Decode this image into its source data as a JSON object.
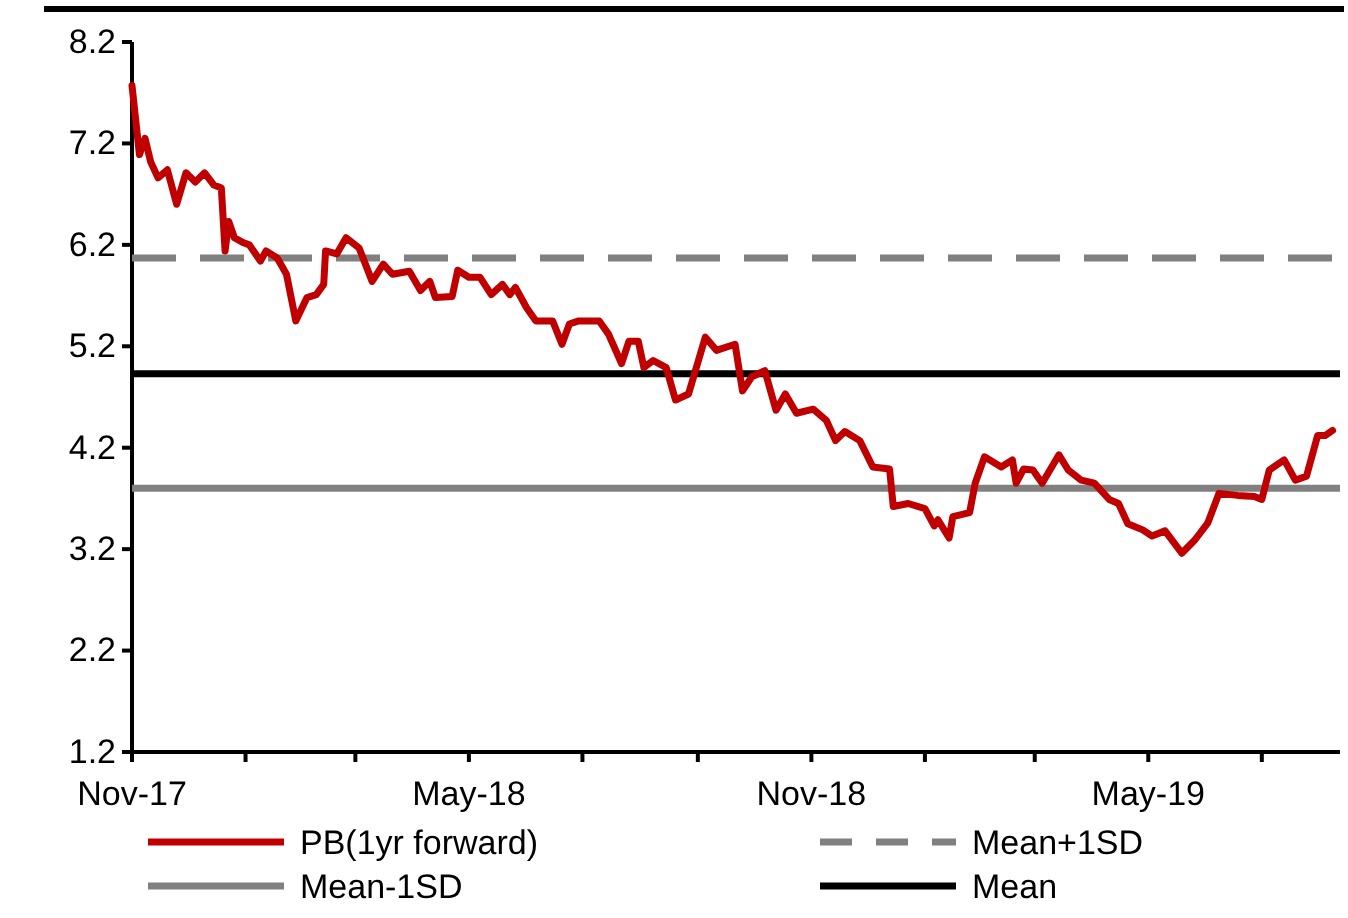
{
  "chart_data": {
    "type": "line",
    "x": [
      "2017-11-01",
      "2017-11-05",
      "2017-11-08",
      "2017-11-11",
      "2017-11-15",
      "2017-11-20",
      "2017-11-25",
      "2017-11-30",
      "2017-12-05",
      "2017-12-10",
      "2017-12-15",
      "2017-12-19",
      "2017-12-21",
      "2017-12-23",
      "2017-12-26",
      "2017-12-31",
      "2018-01-03",
      "2018-01-09",
      "2018-01-12",
      "2018-01-18",
      "2018-01-23",
      "2018-01-28",
      "2018-02-03",
      "2018-02-08",
      "2018-02-12",
      "2018-02-13",
      "2018-02-19",
      "2018-02-24",
      "2018-03-03",
      "2018-03-10",
      "2018-03-16",
      "2018-03-21",
      "2018-03-30",
      "2018-04-05",
      "2018-04-10",
      "2018-04-13",
      "2018-04-22",
      "2018-04-25",
      "2018-05-01",
      "2018-05-07",
      "2018-05-13",
      "2018-05-19",
      "2018-05-23",
      "2018-05-26",
      "2018-06-01",
      "2018-06-06",
      "2018-06-15",
      "2018-06-20",
      "2018-06-24",
      "2018-06-29",
      "2018-07-10",
      "2018-07-15",
      "2018-07-22",
      "2018-07-26",
      "2018-07-31",
      "2018-08-03",
      "2018-08-08",
      "2018-08-15",
      "2018-08-20",
      "2018-08-27",
      "2018-09-05",
      "2018-09-11",
      "2018-09-21",
      "2018-09-25",
      "2018-09-30",
      "2018-10-07",
      "2018-10-13",
      "2018-10-18",
      "2018-10-24",
      "2018-11-02",
      "2018-11-09",
      "2018-11-14",
      "2018-11-19",
      "2018-11-27",
      "2018-12-04",
      "2018-12-13",
      "2018-12-15",
      "2018-12-23",
      "2019-01-01",
      "2019-01-06",
      "2019-01-08",
      "2019-01-14",
      "2019-01-16",
      "2019-01-25",
      "2019-01-28",
      "2019-02-02",
      "2019-02-11",
      "2019-02-17",
      "2019-02-19",
      "2019-02-23",
      "2019-02-28",
      "2019-03-05",
      "2019-03-14",
      "2019-03-19",
      "2019-03-26",
      "2019-04-02",
      "2019-04-10",
      "2019-04-15",
      "2019-04-20",
      "2019-04-28",
      "2019-05-03",
      "2019-05-10",
      "2019-05-19",
      "2019-05-26",
      "2019-06-02",
      "2019-06-08",
      "2019-06-18",
      "2019-06-27",
      "2019-07-01",
      "2019-07-05",
      "2019-07-13",
      "2019-07-19",
      "2019-07-25",
      "2019-07-31",
      "2019-08-04",
      "2019-08-08"
    ],
    "series": [
      {
        "name": "PB(1yr forward)",
        "color": "#c00000",
        "values": [
          7.77,
          7.09,
          7.25,
          7.02,
          6.86,
          6.94,
          6.6,
          6.91,
          6.82,
          6.91,
          6.79,
          6.76,
          6.14,
          6.43,
          6.27,
          6.22,
          6.2,
          6.04,
          6.14,
          6.07,
          5.91,
          5.45,
          5.68,
          5.71,
          5.81,
          6.14,
          6.11,
          6.27,
          6.17,
          5.84,
          6.01,
          5.91,
          5.94,
          5.75,
          5.84,
          5.68,
          5.69,
          5.95,
          5.88,
          5.88,
          5.71,
          5.81,
          5.71,
          5.78,
          5.58,
          5.45,
          5.45,
          5.22,
          5.42,
          5.45,
          5.45,
          5.32,
          5.03,
          5.25,
          5.25,
          4.99,
          5.06,
          4.99,
          4.67,
          4.73,
          5.29,
          5.16,
          5.22,
          4.76,
          4.9,
          4.96,
          4.57,
          4.73,
          4.54,
          4.58,
          4.47,
          4.27,
          4.36,
          4.27,
          4.01,
          3.99,
          3.62,
          3.65,
          3.6,
          3.43,
          3.49,
          3.31,
          3.52,
          3.56,
          3.85,
          4.11,
          4.01,
          4.08,
          3.85,
          3.99,
          3.98,
          3.85,
          4.13,
          3.98,
          3.88,
          3.85,
          3.69,
          3.65,
          3.45,
          3.39,
          3.33,
          3.38,
          3.16,
          3.29,
          3.46,
          3.75,
          3.73,
          3.72,
          3.69,
          3.98,
          4.08,
          3.88,
          3.92,
          4.32,
          4.32,
          4.37
        ]
      }
    ],
    "ref_lines": [
      {
        "axis": "y",
        "value": 6.07,
        "label": "Mean+1SD",
        "color": "#808080",
        "line_style": "dashed"
      },
      {
        "axis": "y",
        "value": 3.8,
        "label": "Mean-1SD",
        "color": "#808080",
        "line_style": "solid"
      },
      {
        "axis": "y",
        "value": 4.93,
        "label": "Mean",
        "color": "#000000",
        "line_style": "solid"
      }
    ],
    "xlim": [
      "2017-11-01",
      "2019-08-12"
    ],
    "xticks": [
      {
        "value": "2017-11-01",
        "label": "Nov-17"
      },
      {
        "value": "2018-01-01",
        "label": null
      },
      {
        "value": "2018-03-01",
        "label": null
      },
      {
        "value": "2018-05-01",
        "label": "May-18"
      },
      {
        "value": "2018-07-01",
        "label": null
      },
      {
        "value": "2018-09-01",
        "label": null
      },
      {
        "value": "2018-11-01",
        "label": "Nov-18"
      },
      {
        "value": "2019-01-01",
        "label": null
      },
      {
        "value": "2019-03-01",
        "label": null
      },
      {
        "value": "2019-05-01",
        "label": "May-19"
      },
      {
        "value": "2019-07-01",
        "label": null
      }
    ],
    "ylim": [
      1.2,
      8.2
    ],
    "yticks": [
      1.2,
      2.2,
      3.2,
      4.2,
      5.2,
      6.2,
      7.2,
      8.2
    ],
    "grid": false,
    "legend": "bottom",
    "line_style": "solid",
    "marker": "none"
  }
}
